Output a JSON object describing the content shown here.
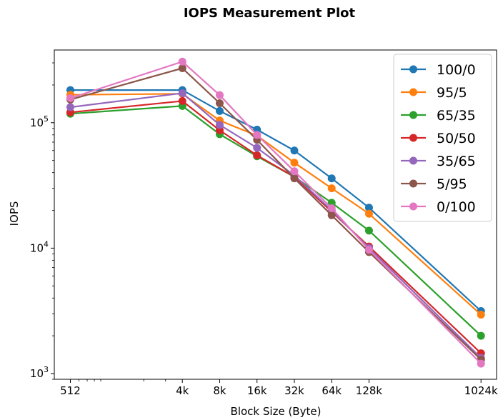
{
  "chart_data": {
    "type": "line",
    "title": "IOPS Measurement Plot",
    "xlabel": "Block Size (Byte)",
    "ylabel": "IOPS",
    "x_scale": "log2",
    "y_scale": "log",
    "x": [
      512,
      4096,
      8192,
      16384,
      32768,
      65536,
      131072,
      1048576
    ],
    "x_tick_labels": [
      "512",
      "4k",
      "8k",
      "16k",
      "32k",
      "64k",
      "128k",
      "1024k"
    ],
    "y_ticks": [
      {
        "value": 1000,
        "base": "10",
        "exp": "3"
      },
      {
        "value": 10000,
        "base": "10",
        "exp": "4"
      },
      {
        "value": 100000,
        "base": "10",
        "exp": "5"
      }
    ],
    "ylim": [
      900,
      380000
    ],
    "legend_position": "top-right",
    "grid": false,
    "series": [
      {
        "name": "100/0",
        "color": "#1f77b4",
        "values": [
          182000,
          182000,
          124000,
          88000,
          60000,
          36000,
          21000,
          3150
        ]
      },
      {
        "name": "95/5",
        "color": "#ff7f0e",
        "values": [
          167000,
          170000,
          104000,
          79000,
          48000,
          30000,
          18800,
          2950
        ]
      },
      {
        "name": "65/35",
        "color": "#2ca02c",
        "values": [
          118000,
          136000,
          81000,
          54000,
          37000,
          23000,
          13800,
          2000
        ]
      },
      {
        "name": "50/50",
        "color": "#d62728",
        "values": [
          121000,
          149000,
          87000,
          55000,
          37000,
          19500,
          10300,
          1450
        ]
      },
      {
        "name": "35/65",
        "color": "#9467bd",
        "values": [
          133000,
          172000,
          96000,
          63000,
          38000,
          20000,
          10000,
          1330
        ]
      },
      {
        "name": "5/95",
        "color": "#8c564b",
        "values": [
          153000,
          272000,
          143000,
          73000,
          36000,
          18300,
          9300,
          1290
        ]
      },
      {
        "name": "0/100",
        "color": "#e377c2",
        "values": [
          157000,
          307000,
          166000,
          80000,
          41000,
          20800,
          9700,
          1200
        ]
      }
    ]
  }
}
